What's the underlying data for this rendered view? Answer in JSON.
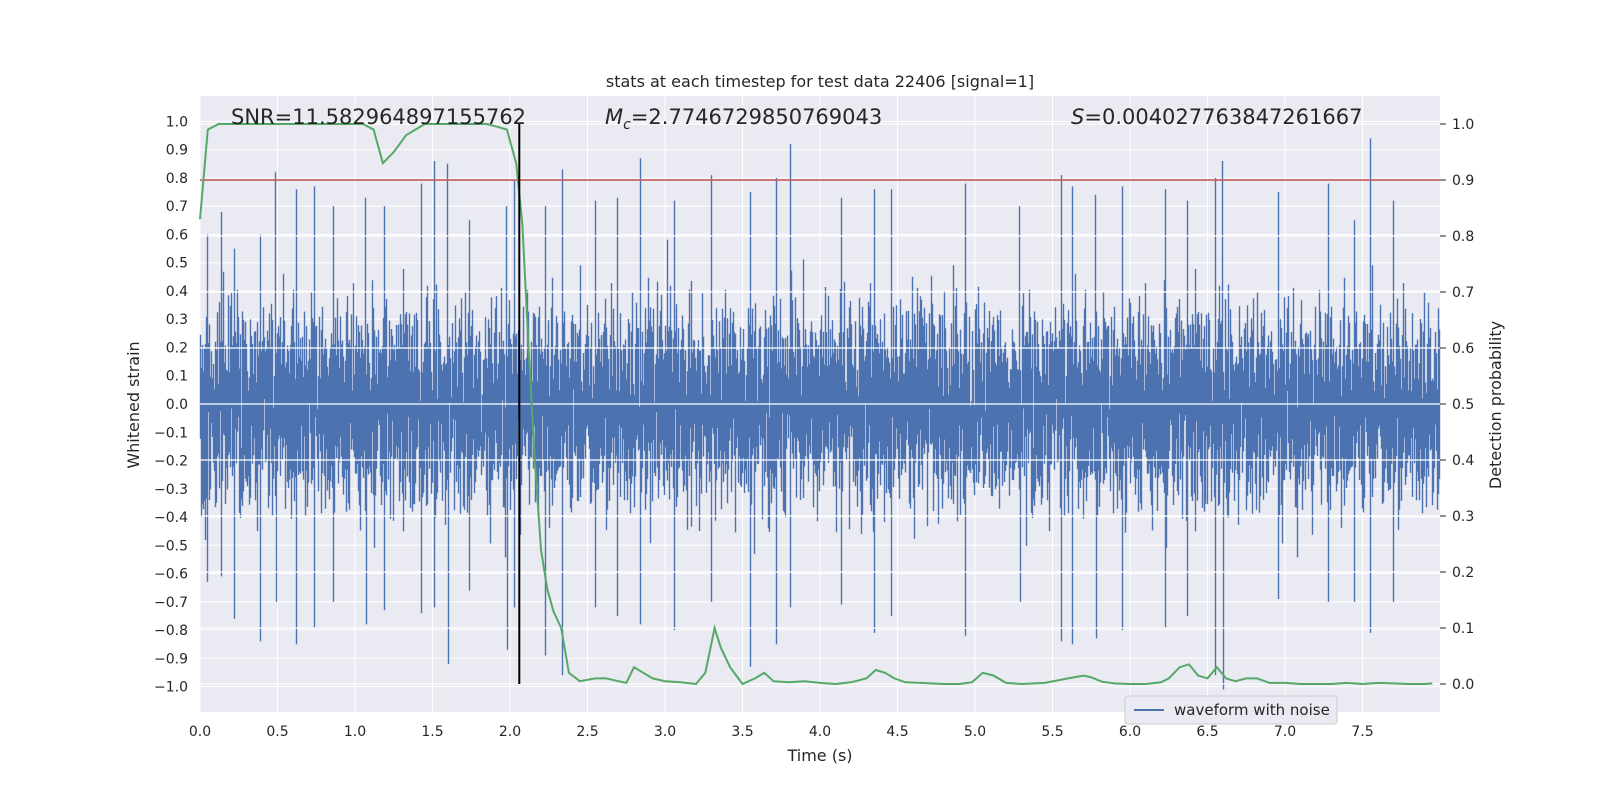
{
  "chart_data": {
    "type": "line",
    "title": "stats at each timestep for test data 22406 [signal=1]",
    "xlabel": "Time (s)",
    "ylabel": "Whitened strain",
    "y2label": "Detection probability",
    "xlim": [
      0.0,
      8.0
    ],
    "ylim": [
      -1.09,
      1.09
    ],
    "y2lim": [
      -0.05,
      1.05
    ],
    "xticks": [
      "0.0",
      "0.5",
      "1.0",
      "1.5",
      "2.0",
      "2.5",
      "3.0",
      "3.5",
      "4.0",
      "4.5",
      "5.0",
      "5.5",
      "6.0",
      "6.5",
      "7.0",
      "7.5"
    ],
    "yticks": [
      "1.0",
      "0.9",
      "0.8",
      "0.7",
      "0.6",
      "0.5",
      "0.4",
      "0.3",
      "0.2",
      "0.1",
      "0.0",
      "-0.1",
      "-0.2",
      "-0.3",
      "-0.4",
      "-0.5",
      "-0.6",
      "-0.7",
      "-0.8",
      "-0.9",
      "-1.0"
    ],
    "y2ticks": [
      "1.0",
      "0.9",
      "0.8",
      "0.7",
      "0.6",
      "0.5",
      "0.4",
      "0.3",
      "0.2",
      "0.1",
      "0.0"
    ],
    "grid": true,
    "legend_position": "lower-right",
    "annotations": {
      "snr": "SNR=11.582964897155762",
      "mc_symbol": "M",
      "mc_sub": "c",
      "mc_value": "=2.7746729850769043",
      "s_symbol": "S",
      "s_value": "=0.004027763847261667"
    },
    "threshold_line": {
      "axis": "right",
      "y": 0.9,
      "color": "#c44e52"
    },
    "event_line": {
      "x": 2.06,
      "color": "#000000"
    },
    "series": [
      {
        "name": "waveform with noise",
        "axis": "left",
        "color": "#4c72b0",
        "sample_rate": 2048,
        "envelope_peaks": [
          [
            0.05,
            0.6,
            -0.63
          ],
          [
            0.14,
            0.68,
            -0.61
          ],
          [
            0.22,
            0.55,
            -0.76
          ],
          [
            0.39,
            0.6,
            -0.84
          ],
          [
            0.49,
            0.82,
            -0.7
          ],
          [
            0.62,
            0.76,
            -0.85
          ],
          [
            0.74,
            0.77,
            -0.79
          ],
          [
            0.86,
            0.7,
            -0.7
          ],
          [
            1.07,
            0.73,
            -0.78
          ],
          [
            1.19,
            0.7,
            -0.73
          ],
          [
            1.43,
            0.78,
            -0.74
          ],
          [
            1.51,
            0.86,
            -0.72
          ],
          [
            1.6,
            0.85,
            -0.92
          ],
          [
            1.74,
            0.65,
            -0.66
          ],
          [
            1.98,
            0.7,
            -0.87
          ],
          [
            2.03,
            0.79,
            -0.72
          ],
          [
            2.23,
            0.7,
            -0.89
          ],
          [
            2.34,
            0.83,
            -0.96
          ],
          [
            2.55,
            0.72,
            -0.72
          ],
          [
            2.69,
            0.73,
            -0.75
          ],
          [
            2.84,
            0.87,
            -0.78
          ],
          [
            3.06,
            0.72,
            -0.8
          ],
          [
            3.3,
            0.81,
            -0.7
          ],
          [
            3.55,
            0.75,
            -0.93
          ],
          [
            3.72,
            0.8,
            -0.85
          ],
          [
            3.81,
            0.92,
            -0.72
          ],
          [
            4.14,
            0.73,
            -0.71
          ],
          [
            4.35,
            0.76,
            -0.81
          ],
          [
            4.46,
            0.76,
            -0.75
          ],
          [
            4.94,
            0.78,
            -0.82
          ],
          [
            5.29,
            0.7,
            -0.7
          ],
          [
            5.56,
            0.81,
            -0.84
          ],
          [
            5.63,
            0.77,
            -0.85
          ],
          [
            5.78,
            0.74,
            -0.83
          ],
          [
            5.95,
            0.77,
            -0.8
          ],
          [
            6.23,
            0.76,
            -0.79
          ],
          [
            6.37,
            0.72,
            -0.75
          ],
          [
            6.55,
            0.8,
            -0.96
          ],
          [
            6.6,
            0.86,
            -1.01
          ],
          [
            6.96,
            0.75,
            -0.69
          ],
          [
            7.28,
            0.78,
            -0.7
          ],
          [
            7.45,
            0.65,
            -0.7
          ],
          [
            7.55,
            0.94,
            -0.81
          ],
          [
            7.7,
            0.72,
            -0.7
          ]
        ]
      },
      {
        "name": "detection probability",
        "axis": "right",
        "color": "#55a868",
        "x": [
          0.0,
          0.05,
          0.12,
          0.3,
          0.6,
          0.9,
          1.05,
          1.12,
          1.18,
          1.25,
          1.33,
          1.45,
          1.6,
          1.75,
          1.85,
          1.92,
          1.98,
          2.04,
          2.08,
          2.12,
          2.16,
          2.2,
          2.24,
          2.28,
          2.33,
          2.38,
          2.45,
          2.55,
          2.62,
          2.7,
          2.75,
          2.8,
          2.86,
          2.92,
          3.0,
          3.1,
          3.2,
          3.26,
          3.32,
          3.36,
          3.42,
          3.5,
          3.58,
          3.64,
          3.7,
          3.8,
          3.9,
          4.0,
          4.1,
          4.2,
          4.3,
          4.36,
          4.42,
          4.48,
          4.55,
          4.65,
          4.8,
          4.9,
          4.98,
          5.05,
          5.12,
          5.2,
          5.3,
          5.45,
          5.6,
          5.7,
          5.75,
          5.82,
          5.9,
          6.0,
          6.1,
          6.2,
          6.25,
          6.32,
          6.38,
          6.44,
          6.5,
          6.56,
          6.62,
          6.68,
          6.75,
          6.82,
          6.9,
          7.0,
          7.1,
          7.2,
          7.3,
          7.4,
          7.5,
          7.6,
          7.7,
          7.8,
          7.9,
          7.95
        ],
        "y": [
          0.83,
          0.99,
          1.0,
          1.0,
          1.0,
          1.0,
          1.0,
          0.99,
          0.93,
          0.95,
          0.98,
          1.0,
          1.0,
          1.0,
          1.0,
          0.995,
          0.99,
          0.93,
          0.82,
          0.6,
          0.4,
          0.24,
          0.17,
          0.13,
          0.1,
          0.02,
          0.005,
          0.01,
          0.01,
          0.005,
          0.002,
          0.03,
          0.02,
          0.01,
          0.005,
          0.003,
          0.0,
          0.02,
          0.1,
          0.065,
          0.03,
          0.0,
          0.01,
          0.02,
          0.005,
          0.003,
          0.005,
          0.002,
          0.0,
          0.003,
          0.01,
          0.025,
          0.02,
          0.01,
          0.003,
          0.002,
          0.0,
          0.0,
          0.003,
          0.02,
          0.015,
          0.002,
          0.0,
          0.002,
          0.01,
          0.015,
          0.012,
          0.004,
          0.001,
          0.0,
          0.0,
          0.003,
          0.01,
          0.03,
          0.035,
          0.015,
          0.01,
          0.03,
          0.01,
          0.005,
          0.01,
          0.01,
          0.002,
          0.002,
          0.0,
          0.0,
          0.0,
          0.002,
          0.0,
          0.002,
          0.001,
          0.0,
          0.0,
          0.001
        ]
      }
    ]
  }
}
